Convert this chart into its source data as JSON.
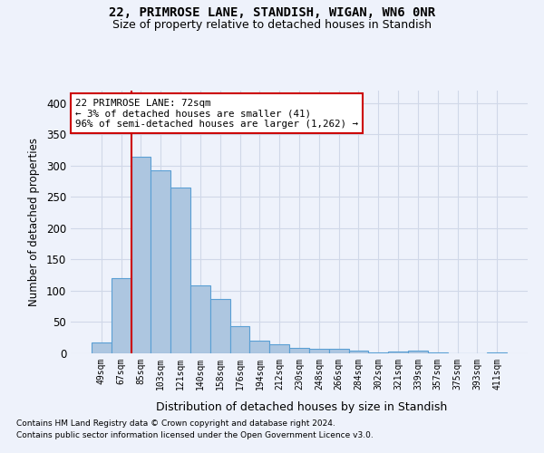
{
  "title1": "22, PRIMROSE LANE, STANDISH, WIGAN, WN6 0NR",
  "title2": "Size of property relative to detached houses in Standish",
  "xlabel": "Distribution of detached houses by size in Standish",
  "ylabel": "Number of detached properties",
  "categories": [
    "49sqm",
    "67sqm",
    "85sqm",
    "103sqm",
    "121sqm",
    "140sqm",
    "158sqm",
    "176sqm",
    "194sqm",
    "212sqm",
    "230sqm",
    "248sqm",
    "266sqm",
    "284sqm",
    "302sqm",
    "321sqm",
    "339sqm",
    "357sqm",
    "375sqm",
    "393sqm",
    "411sqm"
  ],
  "values": [
    18,
    120,
    315,
    293,
    265,
    108,
    87,
    44,
    20,
    15,
    8,
    7,
    7,
    5,
    2,
    3,
    5,
    2,
    0,
    0,
    2
  ],
  "bar_color": "#adc6e0",
  "bar_edge_color": "#5a9fd4",
  "grid_color": "#d0d8e8",
  "background_color": "#eef2fb",
  "vline_color": "#cc0000",
  "annotation_lines": [
    "22 PRIMROSE LANE: 72sqm",
    "← 3% of detached houses are smaller (41)",
    "96% of semi-detached houses are larger (1,262) →"
  ],
  "annotation_box_color": "#ffffff",
  "annotation_box_edge": "#cc0000",
  "footnote1": "Contains HM Land Registry data © Crown copyright and database right 2024.",
  "footnote2": "Contains public sector information licensed under the Open Government Licence v3.0.",
  "ylim": [
    0,
    420
  ],
  "yticks": [
    0,
    50,
    100,
    150,
    200,
    250,
    300,
    350,
    400
  ]
}
